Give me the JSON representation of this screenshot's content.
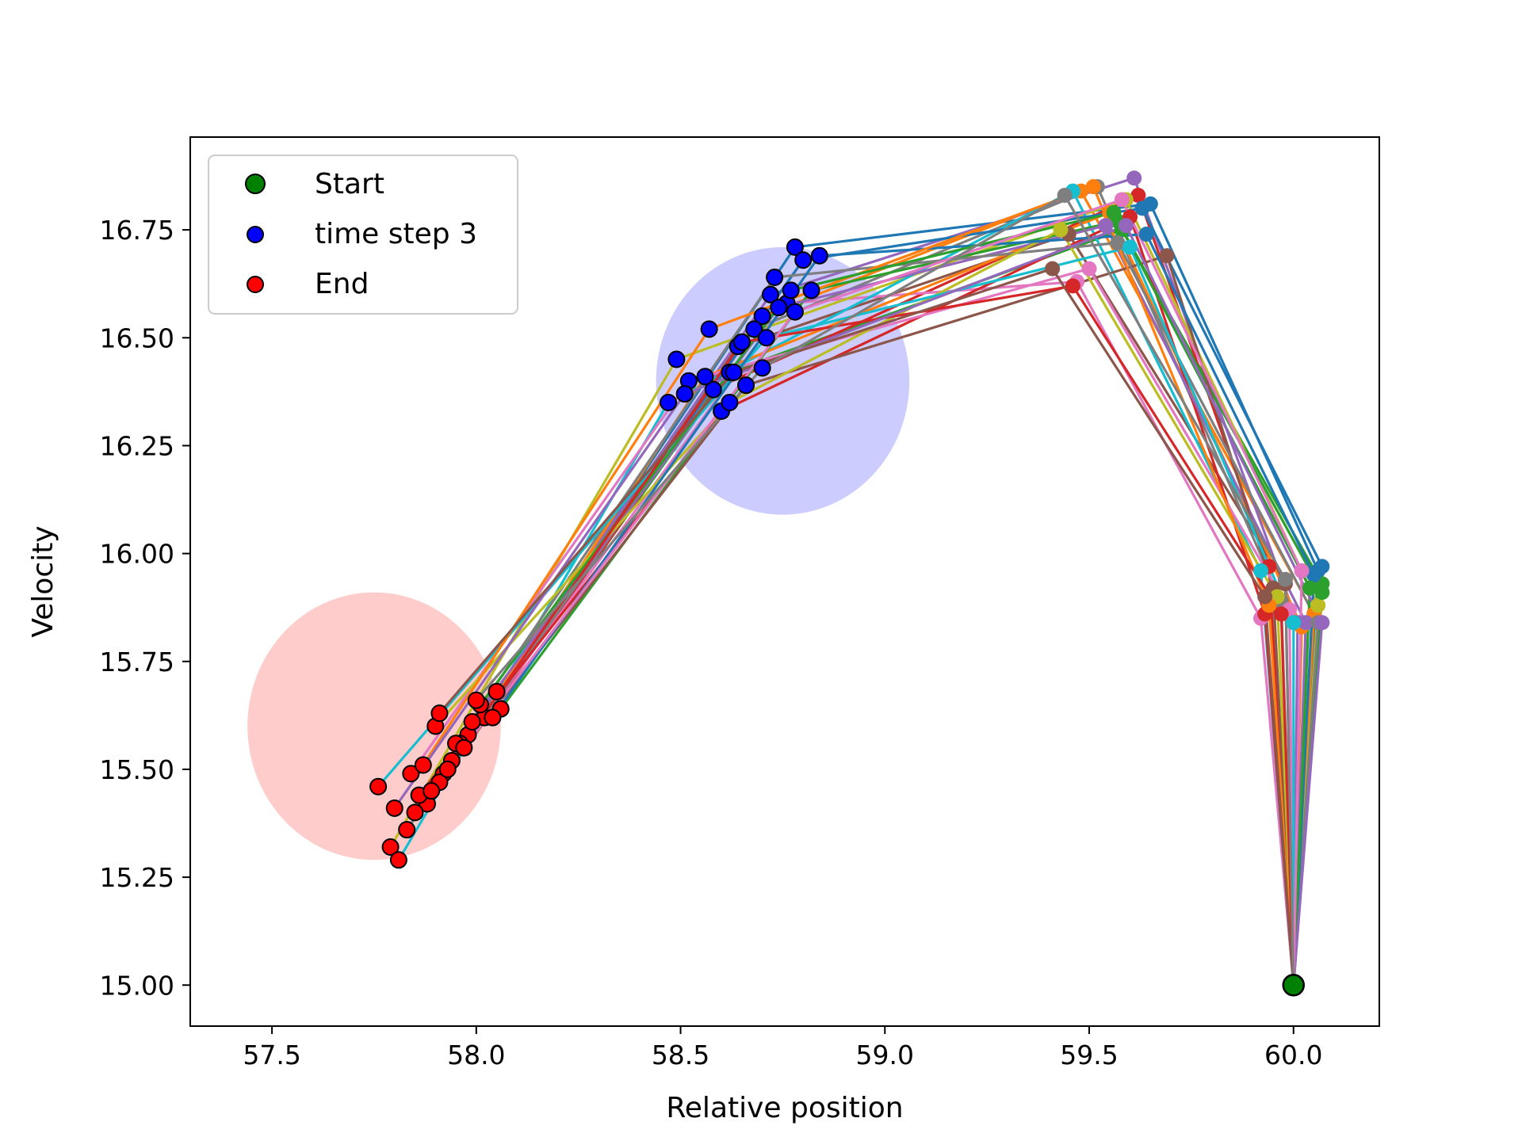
{
  "chart_data": {
    "type": "line",
    "title": "",
    "xlabel": "Relative position",
    "ylabel": "Velocity",
    "xlim": [
      57.3,
      60.21
    ],
    "ylim": [
      14.905,
      16.965
    ],
    "xticks": [
      57.5,
      58.0,
      58.5,
      59.0,
      59.5,
      60.0
    ],
    "xtick_labels": [
      "57.5",
      "58.0",
      "58.5",
      "59.0",
      "59.5",
      "60.0"
    ],
    "yticks": [
      15.0,
      15.25,
      15.5,
      15.75,
      16.0,
      16.25,
      16.5,
      16.75
    ],
    "ytick_labels": [
      "15.00",
      "15.25",
      "15.50",
      "15.75",
      "16.00",
      "16.25",
      "16.50",
      "16.75"
    ],
    "grid": false,
    "legend_position": "top-left",
    "legend": [
      {
        "label": "Start",
        "color": "#008000"
      },
      {
        "label": "time step 3",
        "color": "#0000ff"
      },
      {
        "label": "End",
        "color": "#ff0000"
      }
    ],
    "regions": [
      {
        "name": "time-step-3-region",
        "center": [
          58.75,
          16.4
        ],
        "radius_x": 0.31,
        "radius_y": 0.31,
        "color": "#ccccff"
      },
      {
        "name": "end-region",
        "center": [
          57.75,
          15.6
        ],
        "radius_x": 0.31,
        "radius_y": 0.31,
        "color": "#ffcccc"
      }
    ],
    "start_point": [
      60.0,
      15.0
    ],
    "palette": [
      "#1f77b4",
      "#ff7f0e",
      "#2ca02c",
      "#d62728",
      "#9467bd",
      "#8c564b",
      "#e377c2",
      "#7f7f7f",
      "#bcbd22",
      "#17becf"
    ],
    "trajectories": [
      {
        "x": [
          60.0,
          60.06,
          59.65,
          58.78,
          57.98
        ],
        "y": [
          15.0,
          15.96,
          16.81,
          16.71,
          15.58
        ]
      },
      {
        "x": [
          60.0,
          60.05,
          59.48,
          58.7,
          57.92
        ],
        "y": [
          15.0,
          15.86,
          16.84,
          16.55,
          15.49
        ]
      },
      {
        "x": [
          60.0,
          60.07,
          59.58,
          58.62,
          57.94
        ],
        "y": [
          15.0,
          15.93,
          16.75,
          16.42,
          15.52
        ]
      },
      {
        "x": [
          60.0,
          59.94,
          59.62,
          58.58,
          57.88
        ],
        "y": [
          15.0,
          15.97,
          16.83,
          16.38,
          15.42
        ]
      },
      {
        "x": [
          60.0,
          60.01,
          59.61,
          58.72,
          57.96
        ],
        "y": [
          15.0,
          15.84,
          16.87,
          16.6,
          15.56
        ]
      },
      {
        "x": [
          60.0,
          59.98,
          59.45,
          58.64,
          57.85
        ],
        "y": [
          15.0,
          15.93,
          16.74,
          16.48,
          15.4
        ]
      },
      {
        "x": [
          60.0,
          59.92,
          59.47,
          58.76,
          58.02
        ],
        "y": [
          15.0,
          15.85,
          16.63,
          16.58,
          15.62
        ]
      },
      {
        "x": [
          60.0,
          59.97,
          59.52,
          58.68,
          57.83
        ],
        "y": [
          15.0,
          15.89,
          16.85,
          16.52,
          15.36
        ]
      },
      {
        "x": [
          60.0,
          60.06,
          59.59,
          58.49,
          57.79
        ],
        "y": [
          15.0,
          15.88,
          16.82,
          16.45,
          15.32
        ]
      },
      {
        "x": [
          60.0,
          59.92,
          59.46,
          58.47,
          57.81
        ],
        "y": [
          15.0,
          15.96,
          16.84,
          16.35,
          15.29
        ]
      },
      {
        "x": [
          60.0,
          60.07,
          59.63,
          58.8,
          58.05
        ],
        "y": [
          15.0,
          15.97,
          16.8,
          16.68,
          15.68
        ]
      },
      {
        "x": [
          60.0,
          60.02,
          59.55,
          58.56,
          57.91
        ],
        "y": [
          15.0,
          15.83,
          16.79,
          16.41,
          15.47
        ]
      },
      {
        "x": [
          60.0,
          60.07,
          59.57,
          58.82,
          58.06
        ],
        "y": [
          15.0,
          15.91,
          16.77,
          16.61,
          15.64
        ]
      },
      {
        "x": [
          60.0,
          59.93,
          59.6,
          58.6,
          57.86
        ],
        "y": [
          15.0,
          15.86,
          16.78,
          16.33,
          15.44
        ]
      },
      {
        "x": [
          60.0,
          60.03,
          59.54,
          58.74,
          57.99
        ],
        "y": [
          15.0,
          15.84,
          16.76,
          16.57,
          15.61
        ]
      },
      {
        "x": [
          60.0,
          59.95,
          59.69,
          58.66,
          57.93
        ],
        "y": [
          15.0,
          15.92,
          16.69,
          16.39,
          15.5
        ]
      },
      {
        "x": [
          60.0,
          59.99,
          59.5,
          58.52,
          57.84
        ],
        "y": [
          15.0,
          15.87,
          16.66,
          16.4,
          15.49
        ]
      },
      {
        "x": [
          60.0,
          60.06,
          59.57,
          58.73,
          57.95
        ],
        "y": [
          15.0,
          15.84,
          16.72,
          16.64,
          15.56
        ]
      },
      {
        "x": [
          60.0,
          59.96,
          59.43,
          58.62,
          57.9
        ],
        "y": [
          15.0,
          15.9,
          16.75,
          16.35,
          15.6
        ]
      },
      {
        "x": [
          60.0,
          60.0,
          59.6,
          58.71,
          57.76
        ],
        "y": [
          15.0,
          15.84,
          16.71,
          16.5,
          15.46
        ]
      },
      {
        "x": [
          60.0,
          60.05,
          59.64,
          58.84,
          58.04
        ],
        "y": [
          15.0,
          15.95,
          16.74,
          16.69,
          15.62
        ]
      },
      {
        "x": [
          60.0,
          59.94,
          59.51,
          58.57,
          57.87
        ],
        "y": [
          15.0,
          15.88,
          16.85,
          16.52,
          15.51
        ]
      },
      {
        "x": [
          60.0,
          60.04,
          59.56,
          58.77,
          58.01
        ],
        "y": [
          15.0,
          15.92,
          16.79,
          16.61,
          15.65
        ]
      },
      {
        "x": [
          60.0,
          59.97,
          59.46,
          58.65,
          57.89
        ],
        "y": [
          15.0,
          15.86,
          16.62,
          16.49,
          15.45
        ]
      },
      {
        "x": [
          60.0,
          60.07,
          59.59,
          58.51,
          57.8
        ],
        "y": [
          15.0,
          15.84,
          16.76,
          16.37,
          15.41
        ]
      },
      {
        "x": [
          60.0,
          59.93,
          59.41,
          58.63,
          57.91
        ],
        "y": [
          15.0,
          15.9,
          16.66,
          16.42,
          15.63
        ]
      },
      {
        "x": [
          60.0,
          60.02,
          59.58,
          58.78,
          57.97
        ],
        "y": [
          15.0,
          15.96,
          16.82,
          16.56,
          15.55
        ]
      },
      {
        "x": [
          60.0,
          59.98,
          59.44,
          58.7,
          58.0
        ],
        "y": [
          15.0,
          15.94,
          16.83,
          16.43,
          15.66
        ]
      }
    ]
  }
}
